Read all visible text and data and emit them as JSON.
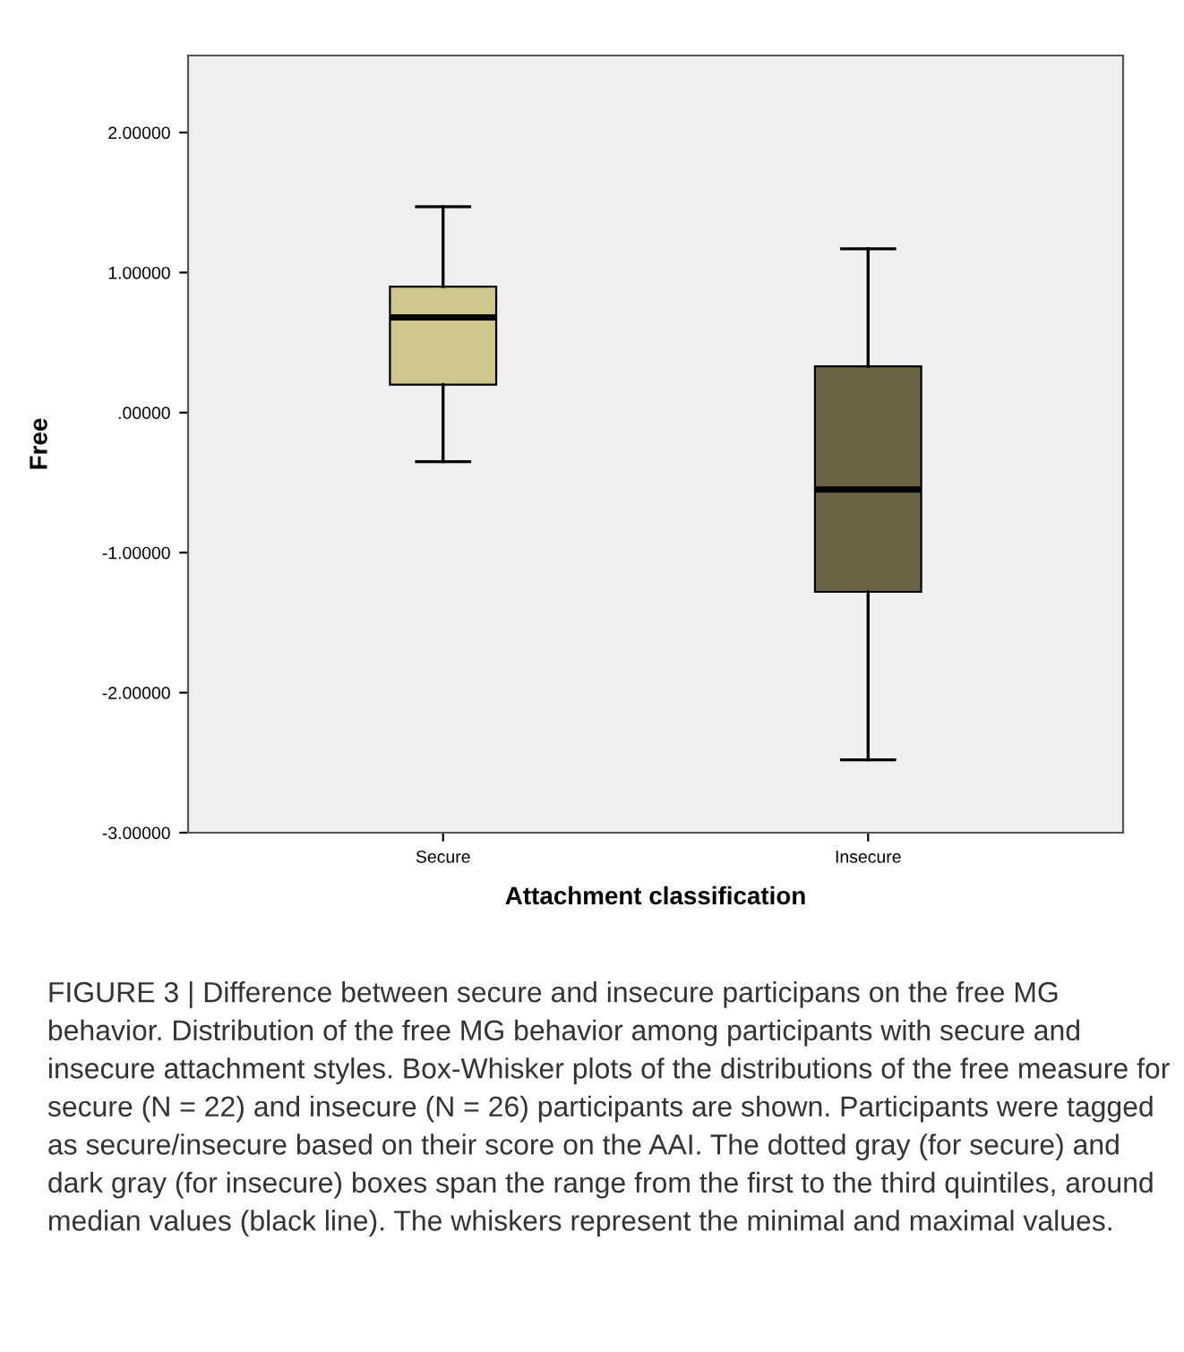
{
  "chart_data": {
    "type": "box",
    "xlabel": "Attachment classification",
    "ylabel": "Free",
    "categories": [
      "Secure",
      "Insecure"
    ],
    "colors": [
      "#cfc68e",
      "#6b6545"
    ],
    "boxes": [
      {
        "low": -0.35,
        "q1": 0.2,
        "median": 0.68,
        "q3": 0.9,
        "high": 1.47
      },
      {
        "low": -2.48,
        "q1": -1.28,
        "median": -0.55,
        "q3": 0.33,
        "high": 1.17
      }
    ],
    "ylim": [
      -3,
      2.55
    ],
    "yticks": [
      {
        "value": -3,
        "label": "-3.00000"
      },
      {
        "value": -2,
        "label": "-2.00000"
      },
      {
        "value": -1,
        "label": "-1.00000"
      },
      {
        "value": 0,
        "label": ".00000"
      },
      {
        "value": 1,
        "label": "1.00000"
      },
      {
        "value": 2,
        "label": "2.00000"
      }
    ],
    "grid": false,
    "annotations": [
      "FIGURE 3 | Difference between secure and insecure participans on the free MG behavior. Distribution of the free MG behavior among participants with secure and insecure attachment styles. Box-Whisker plots of the distributions of the free measure for secure (N = 22) and insecure (N = 26) participants are shown. Participants were tagged as secure/insecure based on their score on the AAI. The dotted gray (for secure) and dark gray (for insecure) boxes span the range from the first to the third quintiles, around median values (black line). The whiskers represent the minimal and maximal values."
    ]
  }
}
